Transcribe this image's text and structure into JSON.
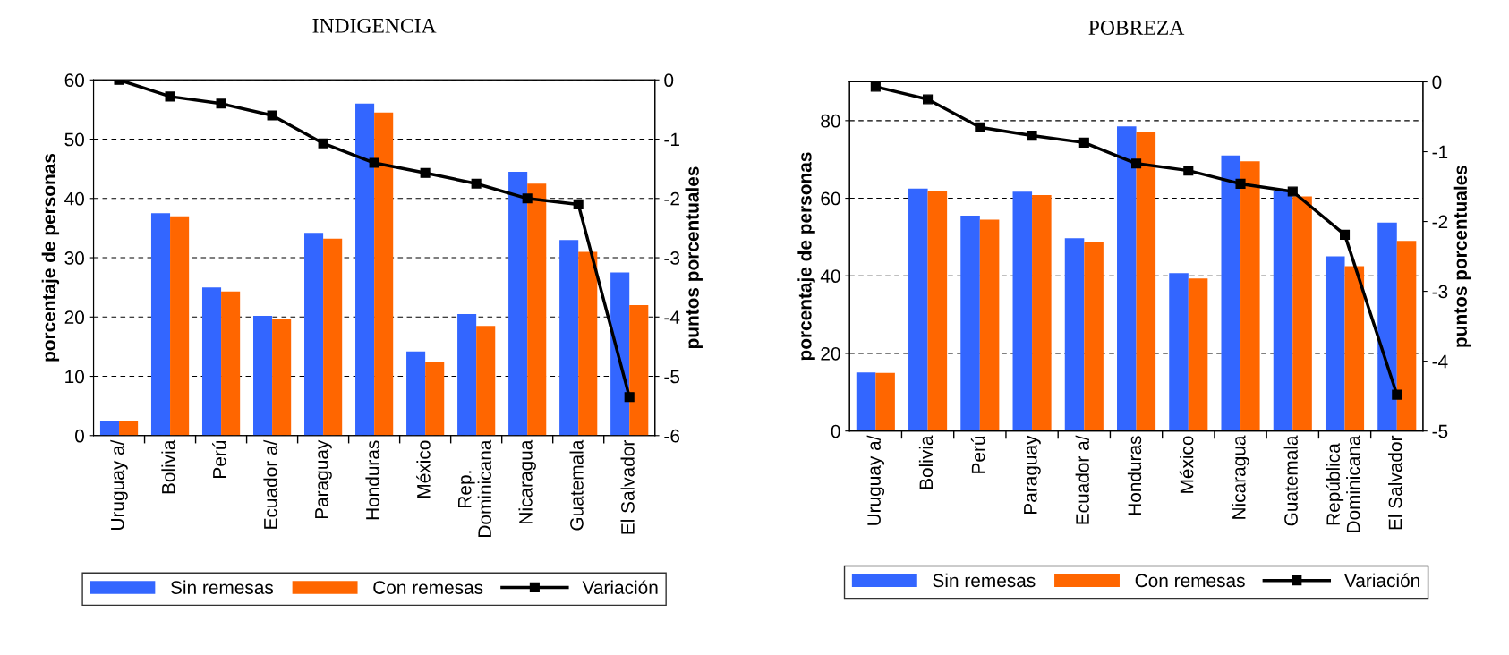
{
  "chart_data": [
    {
      "type": "bar",
      "title": "INDIGENCIA",
      "ylabel": "porcentaje de personas",
      "y2label": "puntos porcentuales",
      "categories": [
        "Uruguay a/",
        "Bolivia",
        "Perú",
        "Ecuador a/",
        "Paraguay",
        "Honduras",
        "México",
        "Rep.\nDominicana",
        "Nicaragua",
        "Guatemala",
        "El Salvador"
      ],
      "series": [
        {
          "name": "Sin remesas",
          "color": "#3366ff",
          "values": [
            2.5,
            37.5,
            25,
            20.2,
            34.2,
            56,
            14.2,
            20.5,
            44.5,
            33,
            27.5
          ]
        },
        {
          "name": "Con remesas",
          "color": "#ff6600",
          "values": [
            2.5,
            37,
            24.3,
            19.6,
            33.2,
            54.5,
            12.5,
            18.5,
            42.5,
            31,
            22
          ]
        },
        {
          "name": "Variación",
          "type": "line",
          "axis": "y2",
          "color": "#000000",
          "marker": "square",
          "values": [
            0,
            -0.28,
            -0.4,
            -0.6,
            -1.07,
            -1.4,
            -1.57,
            -1.75,
            -2.0,
            -2.1,
            -5.35
          ]
        }
      ],
      "ylim": [
        0,
        60
      ],
      "yticks": [
        0,
        10,
        20,
        30,
        40,
        50,
        60
      ],
      "y2lim": [
        -6,
        0
      ],
      "y2ticks": [
        -6,
        -5,
        -4,
        -3,
        -2,
        -1,
        0
      ],
      "grid": "y",
      "legend": "bottom"
    },
    {
      "type": "bar",
      "title": "POBREZA",
      "ylabel": "porcentaje de personas",
      "y2label": "puntos porcentuales",
      "categories": [
        "Uruguay a/",
        "Bolivia",
        "Perú",
        "Paraguay",
        "Ecuador a/",
        "Honduras",
        "México",
        "Nicaragua",
        "Guatemala",
        "República\nDominicana",
        "El Salvador"
      ],
      "series": [
        {
          "name": "Sin remesas",
          "color": "#3366ff",
          "values": [
            15.1,
            62.5,
            55.5,
            61.7,
            49.7,
            78.5,
            40.7,
            71,
            62,
            45,
            53.7
          ]
        },
        {
          "name": "Con remesas",
          "color": "#ff6600",
          "values": [
            15,
            62,
            54.5,
            60.8,
            48.8,
            77,
            39.3,
            69.5,
            60.5,
            42.5,
            49
          ]
        },
        {
          "name": "Variación",
          "type": "line",
          "axis": "y2",
          "color": "#000000",
          "marker": "square",
          "values": [
            -0.07,
            -0.25,
            -0.65,
            -0.77,
            -0.87,
            -1.17,
            -1.27,
            -1.46,
            -1.57,
            -2.19,
            -4.48
          ]
        }
      ],
      "ylim": [
        0,
        90
      ],
      "yticks": [
        0,
        20,
        40,
        60,
        80
      ],
      "y2lim": [
        -5,
        0
      ],
      "y2ticks": [
        -5,
        -4,
        -3,
        -2,
        -1,
        0
      ],
      "grid": "y",
      "legend": "bottom"
    }
  ]
}
